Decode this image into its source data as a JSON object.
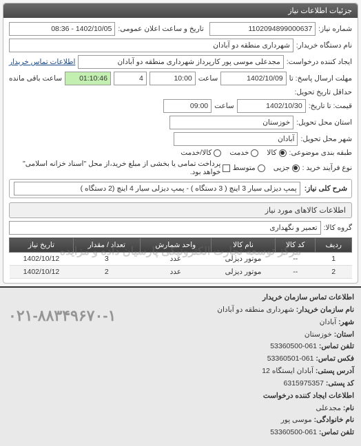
{
  "panel_title": "جزئیات اطلاعات نیاز",
  "top": {
    "req_no_label": "شماره نیاز:",
    "req_no": "1102094899000637",
    "announce_label": "تاریخ و ساعت اعلان عمومی:",
    "announce_val": "1402/10/05 - 08:36",
    "buyer_device_label": "نام دستگاه خریدار:",
    "buyer_device": "شهرداری منطقه دو آبادان",
    "creator_label": "ایجاد کننده درخواست:",
    "creator": "مجدعلی موسی پور کارپرداز شهرداری منطقه دو آبادان",
    "buyer_contact_link": "اطلاعات تماس خریدار",
    "deadline_from_label": "مهلت ارسال پاسخ: تا",
    "deadline_date": "1402/10/09",
    "time1_label": "ساعت",
    "time1": "10:00",
    "count": "4",
    "remain_label": "ساعت باقی مانده",
    "remain": "01:10:46",
    "delivery_from_label": "حداقل تاریخ تحویل:",
    "delivery_to_label": "قیمت: تا تاریخ:",
    "delivery_to_date": "1402/10/30",
    "time2_label": "ساعت",
    "time2": "09:00",
    "province_label": "استان محل تحویل:",
    "province": "خوزستان",
    "city_label": "شهر محل تحویل:",
    "city": "آبادان",
    "cat_label": "طبقه بندی موضوعی:",
    "cat_opts": {
      "kala": "کالا",
      "khadmat": "خدمت",
      "kala_khadmat": "کالا/خدمت"
    },
    "cat_selected": "kala",
    "process_label": "نوع فرآیند خرید :",
    "process_opts": {
      "jozi": "جزیی",
      "motavaset": "متوسط"
    },
    "process_selected": "jozi",
    "process_check_label": "پرداخت تمامی یا بخشی از مبلغ خرید،از محل \"اسناد خزانه اسلامی\" خواهد بود.",
    "desc_label": "شرح کلی نیاز:",
    "desc": "پمپ دیزلی سیار 3 اینچ ( 3 دستگاه ) - پمپ دیزلی سیار 4 اینچ (2 دستگاه )"
  },
  "items": {
    "section_title": "اطلاعات کالاهای مورد نیاز",
    "group_label": "گروه کالا:",
    "group": "تعمیر و نگهداری",
    "columns": {
      "row": "ردیف",
      "code": "کد کالا",
      "name": "نام کالا",
      "unit": "واحد شمارش",
      "qty": "تعداد / مقدار",
      "date": "تاریخ نیاز"
    },
    "rows": [
      {
        "row": "1",
        "code": "--",
        "name": "موتور دیزلی",
        "unit": "عدد",
        "qty": "3",
        "date": "1402/10/12"
      },
      {
        "row": "2",
        "code": "--",
        "name": "موتور دیزلی",
        "unit": "عدد",
        "qty": "2",
        "date": "1402/10/12"
      }
    ],
    "watermark": "مرکز توسعه تجارت الکترونیکی پارسیان داده و مزایده"
  },
  "contact": {
    "header": "اطلاعات تماس سازمان خریدار",
    "org_label": "نام سازمان خریدار:",
    "org": "شهرداری منطقه دو آبادان",
    "city_label": "شهر:",
    "city": "آبادان",
    "province_label": "استان:",
    "province": "خوزستان",
    "phone_label": "تلفن تماس:",
    "phone": "061-53360500",
    "fax_label": "فکس تماس:",
    "fax": "061-53360501",
    "address_label": "آدرس پستی:",
    "address": "آبادان ایستگاه 12",
    "postal_label": "کد پستی:",
    "postal": "6315975357",
    "sub_header": "اطلاعات ایجاد کننده درخواست",
    "fname_label": "نام:",
    "fname": "مجدعلی",
    "lname_label": "نام خانوادگی:",
    "lname": "موسی پور",
    "cphone_label": "تلفن تماس:",
    "cphone": "061-53360500",
    "big_phone": "۰۲۱-۸۸۳۴۹۶۷۰-۱"
  },
  "colors": {
    "header_bg": "#4a4a4a",
    "green": "#c3f0b0",
    "border": "#aaaaaa"
  }
}
